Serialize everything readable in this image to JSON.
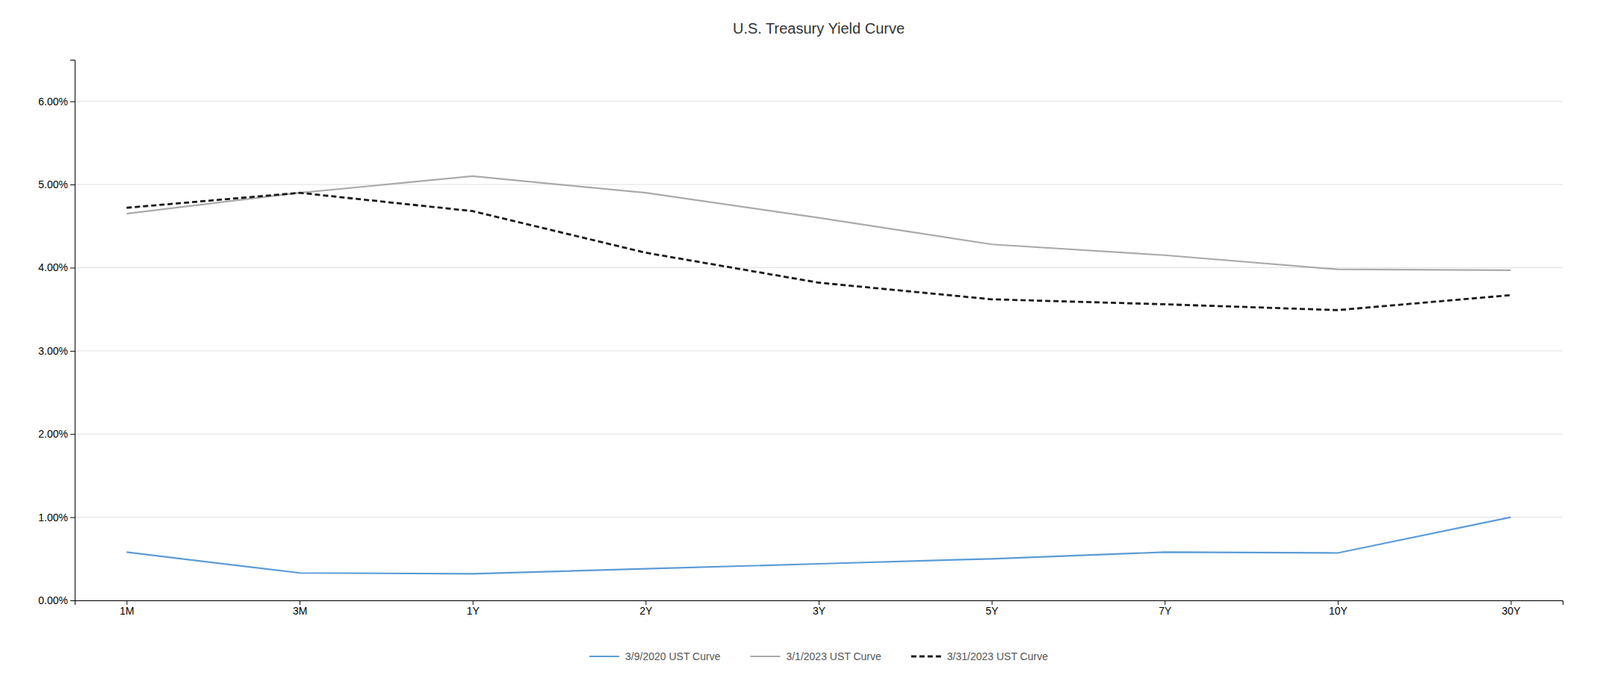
{
  "chart_data": {
    "type": "line",
    "title": "U.S. Treasury Yield Curve",
    "categories": [
      "1M",
      "3M",
      "1Y",
      "2Y",
      "3Y",
      "5Y",
      "7Y",
      "10Y",
      "30Y"
    ],
    "series": [
      {
        "name": "3/9/2020 UST Curve",
        "color": "#5B9BD5",
        "line_style": "solid",
        "values": [
          0.0058,
          0.0033,
          0.0032,
          0.0038,
          0.0044,
          0.005,
          0.0058,
          0.0057,
          0.01
        ]
      },
      {
        "name": "3/1/2023 UST Curve",
        "color": "#AAAAAA",
        "line_style": "solid",
        "values": [
          0.0465,
          0.049,
          0.051,
          0.049,
          0.046,
          0.0428,
          0.0415,
          0.0398,
          0.0397
        ]
      },
      {
        "name": "3/31/2023 UST Curve",
        "color": "#1A1A1A",
        "line_style": "dashed",
        "values": [
          0.0472,
          0.049,
          0.0468,
          0.0418,
          0.0382,
          0.0362,
          0.0356,
          0.0349,
          0.0367
        ]
      }
    ],
    "ylim": [
      0.0,
      0.065
    ],
    "yticks": [
      {
        "value": 0.0,
        "label": "0.00%"
      },
      {
        "value": 0.01,
        "label": "1.00%"
      },
      {
        "value": 0.02,
        "label": "2.00%"
      },
      {
        "value": 0.03,
        "label": "3.00%"
      },
      {
        "value": 0.04,
        "label": "4.00%"
      },
      {
        "value": 0.05,
        "label": "5.00%"
      },
      {
        "value": 0.06,
        "label": "6.00%"
      }
    ],
    "grid": true,
    "legend": "bottom"
  }
}
